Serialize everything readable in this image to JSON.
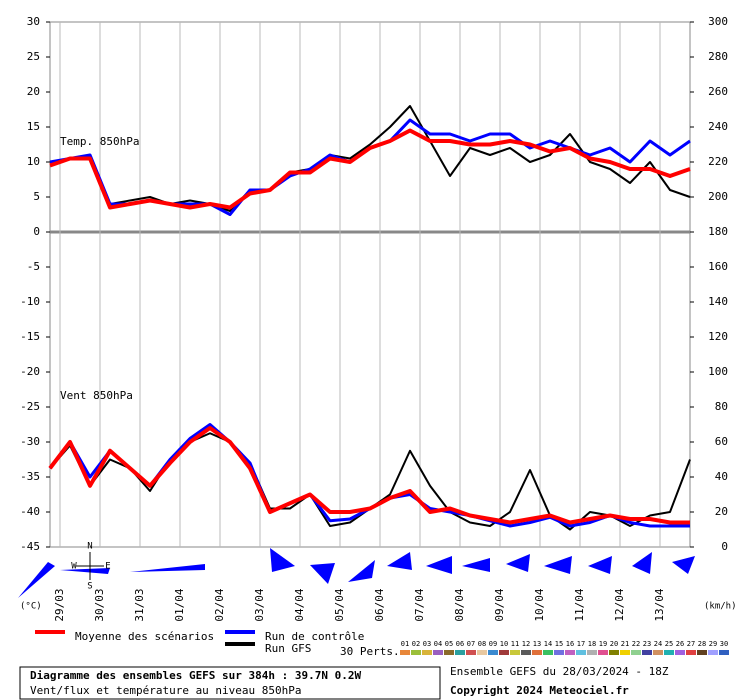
{
  "chart_data": {
    "type": "line",
    "title": "Diagramme des ensembles GEFS sur 384h : 39.7N 0.2W",
    "subtitle": "Vent/flux et température au niveau 850hPa",
    "run_label": "Ensemble GEFS du 28/03/2024 - 18Z",
    "copyright": "Copyright 2024 Meteociel.fr",
    "panel_labels": [
      "Temp. 850hPa",
      "Vent 850hPa"
    ],
    "ylabel": "(°C)",
    "y2label": "(km/h)",
    "compass": [
      "N",
      "W",
      "E",
      "S"
    ],
    "perturbations_label": "30 Perts.",
    "perturbations": [
      {
        "name": "01",
        "color": "#e8873a"
      },
      {
        "name": "02",
        "color": "#9bbf3a"
      },
      {
        "name": "03",
        "color": "#d8b43a"
      },
      {
        "name": "04",
        "color": "#9a5fc0"
      },
      {
        "name": "05",
        "color": "#8a6a2a"
      },
      {
        "name": "06",
        "color": "#2aa0a0"
      },
      {
        "name": "07",
        "color": "#d05050"
      },
      {
        "name": "08",
        "color": "#e8c8a0"
      },
      {
        "name": "09",
        "color": "#3a8ad0"
      },
      {
        "name": "10",
        "color": "#a03a3a"
      },
      {
        "name": "11",
        "color": "#c8c83a"
      },
      {
        "name": "12",
        "color": "#5a5a5a"
      },
      {
        "name": "13",
        "color": "#e0703a"
      },
      {
        "name": "14",
        "color": "#3ac060"
      },
      {
        "name": "15",
        "color": "#7070e0"
      },
      {
        "name": "16",
        "color": "#c060c0"
      },
      {
        "name": "17",
        "color": "#60c0e0"
      },
      {
        "name": "18",
        "color": "#b0b0b0"
      },
      {
        "name": "19",
        "color": "#e05090"
      },
      {
        "name": "20",
        "color": "#808000"
      },
      {
        "name": "21",
        "color": "#f0d000"
      },
      {
        "name": "22",
        "color": "#8fd08f"
      },
      {
        "name": "23",
        "color": "#4040a0"
      },
      {
        "name": "24",
        "color": "#d09060"
      },
      {
        "name": "25",
        "color": "#20b0b0"
      },
      {
        "name": "26",
        "color": "#a060e0"
      },
      {
        "name": "27",
        "color": "#e04040"
      },
      {
        "name": "28",
        "color": "#604020"
      },
      {
        "name": "29",
        "color": "#a0a0ff"
      },
      {
        "name": "30",
        "color": "#3060c0"
      }
    ],
    "x": [
      0,
      12,
      24,
      36,
      48,
      60,
      72,
      84,
      96,
      108,
      120,
      132,
      144,
      156,
      168,
      180,
      192,
      204,
      216,
      228,
      240,
      252,
      264,
      276,
      288,
      300,
      312,
      324,
      336,
      348,
      360,
      372,
      384
    ],
    "xlim": [
      0,
      384
    ],
    "xticks": [
      {
        "value": 6,
        "label": "29/03"
      },
      {
        "value": 30,
        "label": "30/03"
      },
      {
        "value": 54,
        "label": "31/03"
      },
      {
        "value": 78,
        "label": "01/04"
      },
      {
        "value": 102,
        "label": "02/04"
      },
      {
        "value": 126,
        "label": "03/04"
      },
      {
        "value": 150,
        "label": "04/04"
      },
      {
        "value": 174,
        "label": "05/04"
      },
      {
        "value": 198,
        "label": "06/04"
      },
      {
        "value": 222,
        "label": "07/04"
      },
      {
        "value": 246,
        "label": "08/04"
      },
      {
        "value": 270,
        "label": "09/04"
      },
      {
        "value": 294,
        "label": "10/04"
      },
      {
        "value": 318,
        "label": "11/04"
      },
      {
        "value": 342,
        "label": "12/04"
      },
      {
        "value": 366,
        "label": "13/04"
      }
    ],
    "ylim": [
      -45,
      30
    ],
    "yticks": [
      -45,
      -40,
      -35,
      -30,
      -25,
      -20,
      -15,
      -10,
      -5,
      0,
      5,
      10,
      15,
      20,
      25,
      30
    ],
    "y2lim": [
      0,
      300
    ],
    "y2ticks": [
      0,
      20,
      40,
      60,
      80,
      100,
      120,
      140,
      160,
      180,
      200,
      220,
      240,
      260,
      280,
      300
    ],
    "grid": true,
    "series": [
      {
        "name": "Moyenne des scénarios",
        "color": "#ff0000",
        "values": [
          9.5,
          10.5,
          10.5,
          3.5,
          4,
          4.5,
          4,
          3.5,
          4,
          3.5,
          5.5,
          6,
          8.5,
          8.5,
          10.5,
          10,
          12,
          13,
          14.5,
          13,
          13,
          12.5,
          12.5,
          13,
          12.5,
          11.5,
          12,
          10.5,
          10,
          9,
          9,
          8,
          9
        ],
        "wind": [
          45,
          60,
          35,
          55,
          45,
          35,
          48,
          60,
          68,
          60,
          45,
          20,
          25,
          30,
          20,
          20,
          22,
          28,
          32,
          20,
          22,
          18,
          16,
          14,
          16,
          18,
          14,
          16,
          18,
          16,
          16,
          14,
          14
        ]
      },
      {
        "name": "Run de contrôle",
        "color": "#0000ff",
        "values": [
          10,
          10.5,
          11,
          4,
          4,
          4.5,
          4,
          4,
          4,
          2.5,
          6,
          6,
          8,
          9,
          11,
          10,
          12,
          13,
          16,
          14,
          14,
          13,
          14,
          14,
          12,
          13,
          12,
          11,
          12,
          10,
          13,
          11,
          13
        ],
        "wind": [
          45,
          60,
          40,
          55,
          45,
          35,
          50,
          62,
          70,
          60,
          48,
          20,
          25,
          30,
          15,
          16,
          22,
          28,
          30,
          22,
          20,
          18,
          15,
          12,
          14,
          17,
          12,
          14,
          18,
          14,
          12,
          12,
          12
        ]
      },
      {
        "name": "Run GFS",
        "color": "#000000",
        "values": [
          10,
          10.5,
          11,
          4,
          4.5,
          5,
          4,
          4.5,
          4,
          3,
          6,
          6,
          8.5,
          9,
          11,
          10.5,
          12.5,
          15,
          18,
          13,
          8,
          12,
          11,
          12,
          10,
          11,
          14,
          10,
          9,
          7,
          10,
          6,
          5
        ],
        "wind": [
          45,
          58,
          35,
          50,
          45,
          32,
          50,
          60,
          65,
          60,
          48,
          22,
          22,
          30,
          12,
          14,
          22,
          30,
          55,
          35,
          20,
          14,
          12,
          20,
          44,
          18,
          10,
          20,
          18,
          12,
          18,
          20,
          50
        ]
      }
    ]
  }
}
